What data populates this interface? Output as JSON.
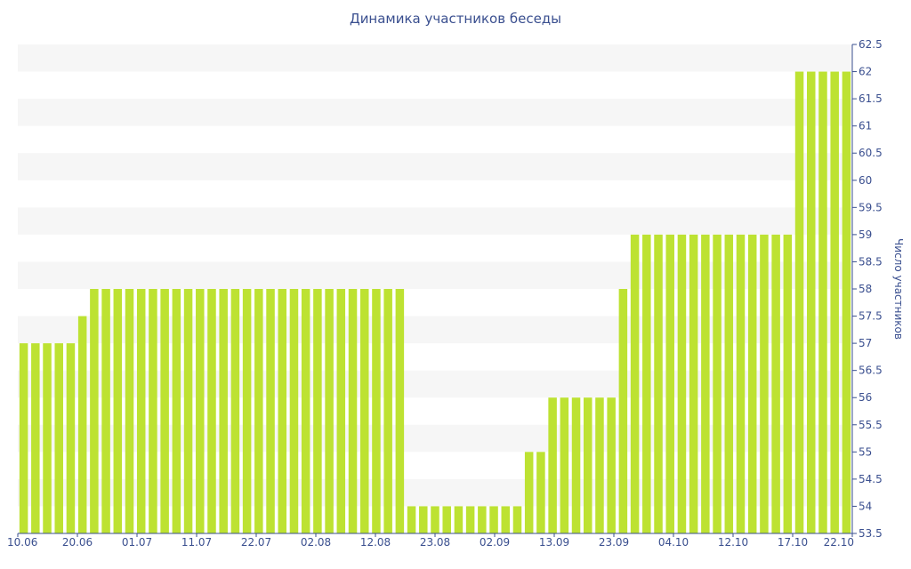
{
  "chart_data": {
    "type": "bar",
    "title": "Динамика участников беседы",
    "xlabel": "",
    "ylabel": "Число участников",
    "ylim": [
      53.5,
      62.5
    ],
    "y_ticks": [
      "53.5",
      "54",
      "54.5",
      "55",
      "55.5",
      "56",
      "56.5",
      "57",
      "57.5",
      "58",
      "58.5",
      "59",
      "59.5",
      "60",
      "60.5",
      "61",
      "61.5",
      "62",
      "62.5"
    ],
    "x_tick_labels": [
      "10.06",
      "20.06",
      "01.07",
      "11.07",
      "22.07",
      "02.08",
      "12.08",
      "23.08",
      "02.09",
      "13.09",
      "23.09",
      "04.10",
      "12.10",
      "17.10",
      "22.10"
    ],
    "grid": "horizontal bands",
    "bar_color": "#bde232",
    "values": [
      57,
      57,
      57,
      57,
      57,
      57.5,
      58,
      58,
      58,
      58,
      58,
      58,
      58,
      58,
      58,
      58,
      58,
      58,
      58,
      58,
      58,
      58,
      58,
      58,
      58,
      58,
      58,
      58,
      58,
      58,
      58,
      58,
      58,
      54,
      54,
      54,
      54,
      54,
      54,
      54,
      54,
      54,
      54,
      55,
      55,
      56,
      56,
      56,
      56,
      56,
      56,
      58,
      59,
      59,
      59,
      59,
      59,
      59,
      59,
      59,
      59,
      59,
      59,
      59,
      59,
      59,
      62,
      62,
      62,
      62,
      62
    ]
  }
}
